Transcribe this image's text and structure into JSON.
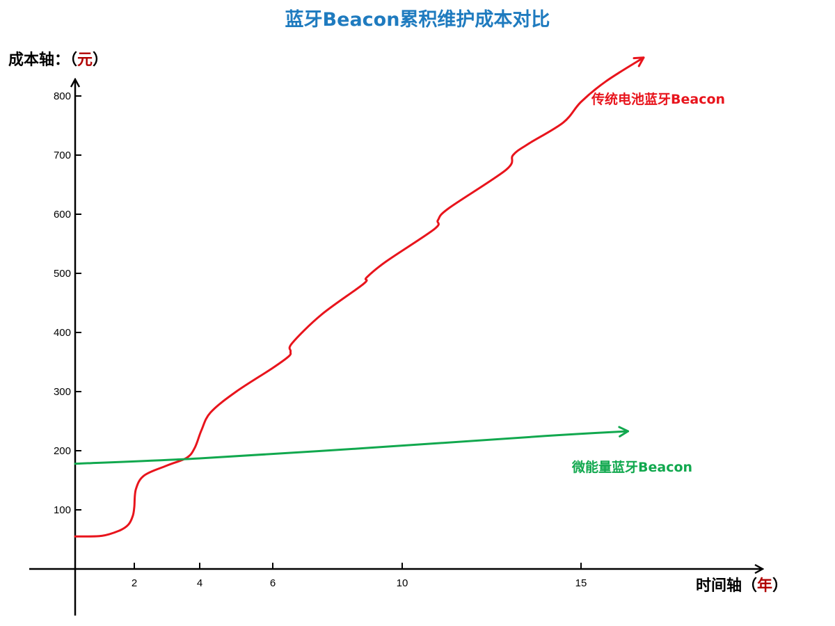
{
  "chart_data": {
    "type": "line",
    "title": "蓝牙Beacon累积维护成本对比",
    "ylabel": {
      "prefix": "成本轴：（",
      "unit": "元",
      "suffix": "）"
    },
    "xlabel": {
      "prefix": "时间轴（",
      "unit": "年",
      "suffix": "）"
    },
    "x_ticks": [
      2,
      4,
      6,
      10,
      15
    ],
    "y_ticks": [
      100,
      200,
      300,
      400,
      500,
      600,
      700,
      800
    ],
    "series": [
      {
        "name": "传统电池蓝牙Beacon",
        "color": "#e8141c",
        "points": [
          [
            0,
            55
          ],
          [
            0.9,
            56
          ],
          [
            1.5,
            65
          ],
          [
            1.8,
            75
          ],
          [
            1.95,
            90
          ],
          [
            2.0,
            105
          ],
          [
            2.05,
            135
          ],
          [
            2.3,
            158
          ],
          [
            3.0,
            175
          ],
          [
            3.6,
            188
          ],
          [
            3.85,
            205
          ],
          [
            4.05,
            235
          ],
          [
            4.3,
            265
          ],
          [
            5.0,
            300
          ],
          [
            6.0,
            340
          ],
          [
            6.5,
            360
          ],
          [
            6.55,
            368
          ],
          [
            6.6,
            382
          ],
          [
            7.5,
            430
          ],
          [
            8.8,
            482
          ],
          [
            8.9,
            493
          ],
          [
            9.5,
            520
          ],
          [
            10.9,
            575
          ],
          [
            11.0,
            590
          ],
          [
            11.3,
            610
          ],
          [
            12.9,
            675
          ],
          [
            13.1,
            700
          ],
          [
            13.5,
            718
          ],
          [
            14.5,
            755
          ],
          [
            15.0,
            790
          ],
          [
            15.8,
            825
          ],
          [
            17.0,
            865
          ]
        ]
      },
      {
        "name": "微能量蓝牙Beacon",
        "color": "#11a84e",
        "points": [
          [
            0,
            178
          ],
          [
            4,
            187
          ],
          [
            9,
            205
          ],
          [
            14,
            225
          ],
          [
            16.5,
            233
          ]
        ]
      }
    ]
  }
}
